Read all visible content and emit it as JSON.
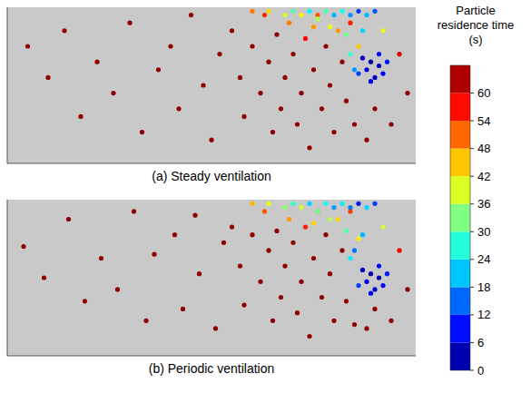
{
  "chart_data": [
    {
      "type": "scatter",
      "title": "(a) Steady ventilation",
      "tick_labels": false,
      "xlim": [
        0,
        100
      ],
      "ylim": [
        0,
        40
      ],
      "x": [
        5,
        10,
        14,
        18,
        22,
        26,
        30,
        33,
        37,
        40,
        42,
        45,
        48,
        50,
        52,
        55,
        57,
        58,
        60,
        62,
        63,
        64,
        65,
        66,
        67,
        68,
        69,
        70,
        71,
        72,
        73,
        74,
        75,
        76,
        77,
        78,
        79,
        80,
        81,
        82,
        83,
        84,
        85,
        86,
        88,
        90,
        92,
        94,
        96,
        98,
        60,
        64,
        68,
        70,
        72,
        74,
        76,
        78,
        80,
        82,
        84,
        86,
        88,
        90,
        75,
        79,
        83,
        87,
        87,
        88,
        89,
        90,
        91,
        92,
        89,
        91,
        86,
        93,
        84,
        85
      ],
      "values": [
        30,
        22,
        34,
        12,
        26,
        18,
        36,
        8,
        24,
        30,
        14,
        38,
        20,
        6,
        28,
        34,
        22,
        12,
        30,
        18,
        38,
        26,
        8,
        33,
        14,
        22,
        36,
        28,
        10,
        18,
        32,
        4,
        24,
        38,
        14,
        30,
        20,
        8,
        34,
        26,
        16,
        36,
        10,
        30,
        6,
        14,
        34,
        10,
        28,
        18,
        39,
        39,
        38,
        39,
        38,
        39,
        37,
        39,
        38,
        39,
        38,
        39,
        38,
        39,
        35,
        35,
        33,
        34,
        27,
        24,
        26,
        22,
        25,
        23,
        21,
        28,
        23,
        26,
        28,
        24
      ],
      "residence_time": [
        65,
        65,
        65,
        65,
        65,
        65,
        65,
        65,
        65,
        65,
        65,
        65,
        65,
        65,
        65,
        65,
        65,
        65,
        65,
        65,
        55,
        65,
        65,
        65,
        65,
        65,
        50,
        65,
        65,
        65,
        58,
        65,
        65,
        52,
        65,
        65,
        65,
        65,
        48,
        65,
        65,
        56,
        65,
        45,
        65,
        65,
        40,
        65,
        60,
        65,
        50,
        44,
        38,
        30,
        42,
        24,
        36,
        30,
        20,
        26,
        18,
        12,
        20,
        14,
        48,
        40,
        32,
        22,
        4,
        6,
        2,
        5,
        3,
        8,
        7,
        9,
        12,
        10,
        28,
        18
      ]
    },
    {
      "type": "scatter",
      "title": "(b) Periodic ventilation",
      "tick_labels": false,
      "xlim": [
        0,
        100
      ],
      "ylim": [
        0,
        40
      ],
      "x": [
        4,
        9,
        15,
        19,
        23,
        27,
        31,
        34,
        36,
        41,
        43,
        46,
        47,
        51,
        53,
        55,
        57,
        58,
        60,
        62,
        63,
        64,
        65,
        66,
        67,
        68,
        69,
        70,
        71,
        72,
        73,
        74,
        75,
        76,
        77,
        78,
        79,
        80,
        81,
        82,
        83,
        84,
        85,
        86,
        88,
        90,
        92,
        94,
        96,
        98,
        60,
        64,
        68,
        70,
        72,
        74,
        76,
        78,
        80,
        82,
        84,
        86,
        88,
        90,
        75,
        79,
        83,
        87,
        87,
        88,
        89,
        90,
        91,
        92,
        89,
        91,
        86,
        93,
        84,
        85
      ],
      "values": [
        28,
        20,
        35,
        14,
        25,
        17,
        37,
        9,
        26,
        31,
        12,
        36,
        21,
        7,
        29,
        33,
        23,
        13,
        31,
        19,
        37,
        27,
        9,
        32,
        15,
        23,
        35,
        29,
        11,
        19,
        33,
        5,
        25,
        37,
        15,
        31,
        21,
        9,
        35,
        27,
        14,
        37,
        8,
        30,
        7,
        12,
        33,
        9,
        27,
        17,
        39,
        39,
        38,
        39,
        38,
        39,
        37,
        39,
        38,
        39,
        38,
        39,
        38,
        39,
        34,
        35,
        32,
        31,
        22,
        19,
        21,
        17,
        20,
        18,
        16,
        23,
        18,
        21,
        25,
        27
      ],
      "residence_time": [
        65,
        65,
        65,
        65,
        65,
        65,
        65,
        65,
        65,
        65,
        65,
        65,
        65,
        65,
        65,
        65,
        65,
        65,
        65,
        65,
        52,
        65,
        65,
        65,
        65,
        65,
        48,
        65,
        65,
        65,
        56,
        65,
        65,
        50,
        65,
        65,
        65,
        65,
        44,
        65,
        65,
        54,
        65,
        42,
        65,
        65,
        38,
        65,
        58,
        65,
        46,
        40,
        34,
        28,
        38,
        22,
        32,
        26,
        18,
        24,
        16,
        10,
        22,
        12,
        44,
        36,
        30,
        20,
        4,
        6,
        2,
        5,
        3,
        8,
        7,
        9,
        12,
        10,
        24,
        16
      ]
    }
  ],
  "colorbar": {
    "title": "Particle residence time (s)",
    "range": [
      0,
      66
    ],
    "ticks": [
      0,
      6,
      12,
      18,
      24,
      30,
      36,
      42,
      48,
      54,
      60
    ]
  }
}
